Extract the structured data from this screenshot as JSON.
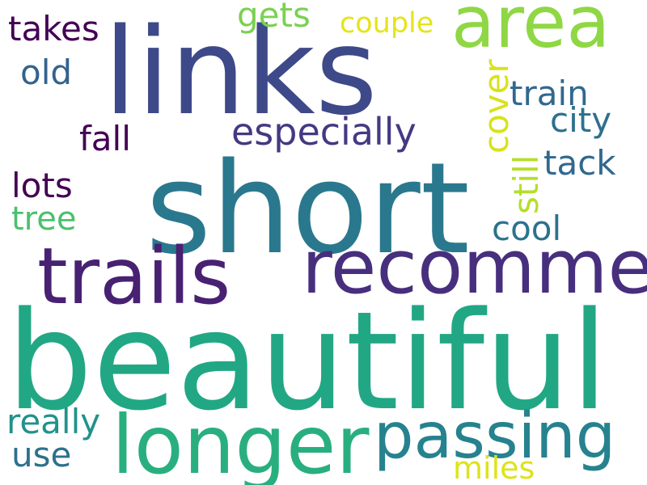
{
  "words": [
    {
      "text": "links",
      "color": "#3e4989"
    },
    {
      "text": "short",
      "color": "#2a788e"
    },
    {
      "text": "beautiful",
      "color": "#22a785"
    },
    {
      "text": "recommend",
      "color": "#472f7d"
    },
    {
      "text": "trails",
      "color": "#482173"
    },
    {
      "text": "area",
      "color": "#8fd744"
    },
    {
      "text": "longer",
      "color": "#29af7f"
    },
    {
      "text": "passing",
      "color": "#26828e"
    },
    {
      "text": "especially",
      "color": "#443983"
    },
    {
      "text": "takes",
      "color": "#440154"
    },
    {
      "text": "old",
      "color": "#33638d"
    },
    {
      "text": "gets",
      "color": "#7ad151"
    },
    {
      "text": "couple",
      "color": "#e5e419"
    },
    {
      "text": "cover",
      "color": "#d8e219"
    },
    {
      "text": "train",
      "color": "#31688e"
    },
    {
      "text": "city",
      "color": "#2d708e"
    },
    {
      "text": "fall",
      "color": "#440154"
    },
    {
      "text": "tack",
      "color": "#31688e"
    },
    {
      "text": "still",
      "color": "#b5de2b"
    },
    {
      "text": "lots",
      "color": "#440154"
    },
    {
      "text": "tree",
      "color": "#4ac16d"
    },
    {
      "text": "cool",
      "color": "#2c728e"
    },
    {
      "text": "really",
      "color": "#20928c"
    },
    {
      "text": "use",
      "color": "#2d708e"
    },
    {
      "text": "miles",
      "color": "#dde318"
    }
  ]
}
